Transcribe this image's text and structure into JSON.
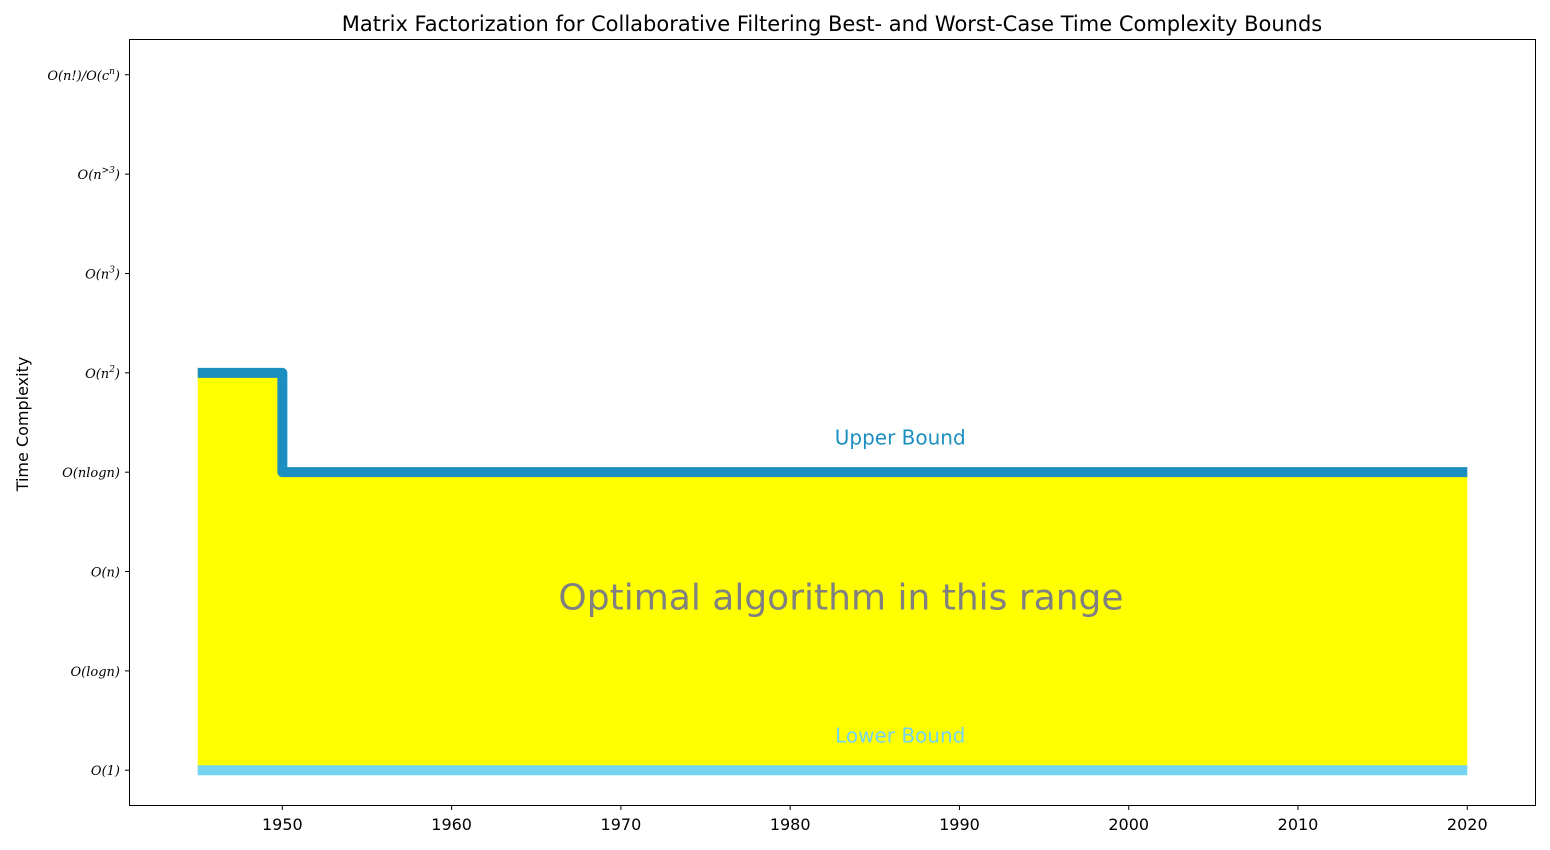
{
  "chart_data": {
    "type": "area",
    "title": "Matrix Factorization for Collaborative Filtering Best- and Worst-Case Time Complexity Bounds",
    "xlabel": "",
    "ylabel": "Time Complexity",
    "xlim": [
      1941,
      2024
    ],
    "ylim": [
      -0.35,
      7.35
    ],
    "xticks": [
      1950,
      1960,
      1970,
      1980,
      1990,
      2000,
      2010,
      2020
    ],
    "yticks": [
      {
        "level": 0,
        "base": "O(1)",
        "sup": ""
      },
      {
        "level": 1,
        "base": "O(logn)",
        "sup": ""
      },
      {
        "level": 2,
        "base": "O(n)",
        "sup": ""
      },
      {
        "level": 3,
        "base": "O(nlogn)",
        "sup": ""
      },
      {
        "level": 4,
        "base": "O(n",
        "sup": "2",
        "close": ")"
      },
      {
        "level": 5,
        "base": "O(n",
        "sup": "3",
        "close": ")"
      },
      {
        "level": 6,
        "base": "O(n",
        "sup": ">3",
        "close": ")"
      },
      {
        "level": 7,
        "base": "O(n!)/O(c",
        "sup": "n",
        "close": ")"
      }
    ],
    "grid": false,
    "series": [
      {
        "name": "Upper Bound",
        "color": "#1b8fc0",
        "step": "post",
        "points": [
          [
            1945,
            4
          ],
          [
            1950,
            4
          ],
          [
            1950,
            3
          ],
          [
            2020,
            3
          ]
        ]
      },
      {
        "name": "Lower Bound",
        "color": "#74d4f2",
        "step": "post",
        "points": [
          [
            1945,
            0
          ],
          [
            2020,
            0
          ]
        ]
      }
    ],
    "fill": {
      "color": "#ffff00",
      "between": [
        "Lower Bound",
        "Upper Bound"
      ]
    },
    "annotations": [
      {
        "text": "Upper Bound",
        "x": 1986.5,
        "y": 3.28,
        "color": "#1b8fc0"
      },
      {
        "text": "Lower Bound",
        "x": 1986.5,
        "y": 0.28,
        "color": "#74d4f2"
      },
      {
        "text": "Optimal algorithm in this range",
        "x": 1983,
        "y": 1.62,
        "color": "#808080"
      }
    ]
  }
}
